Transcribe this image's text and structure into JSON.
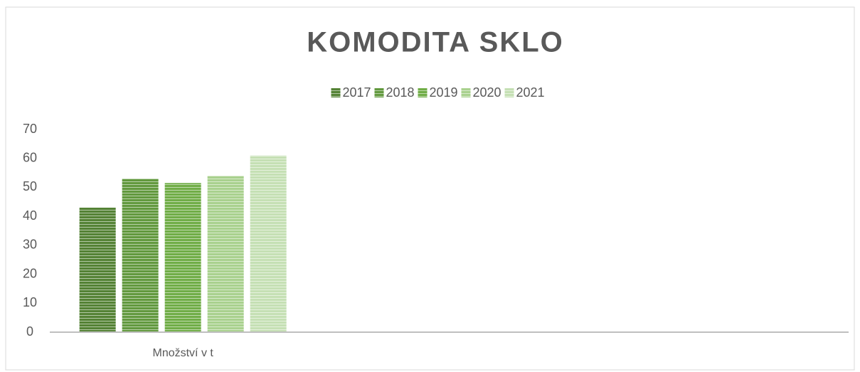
{
  "chart_data": {
    "type": "bar",
    "title": "KOMODITA SKLO",
    "categories": [
      "Množství v t",
      null,
      null
    ],
    "series": [
      {
        "name": "2017",
        "color": "#548235",
        "values": [
          43,
          null,
          null
        ]
      },
      {
        "name": "2018",
        "color": "#62993e",
        "values": [
          53,
          null,
          null
        ]
      },
      {
        "name": "2019",
        "color": "#70ad47",
        "values": [
          51.5,
          null,
          null
        ]
      },
      {
        "name": "2020",
        "color": "#a9d18e",
        "values": [
          54,
          null,
          null
        ]
      },
      {
        "name": "2021",
        "color": "#c5e0b4",
        "values": [
          61,
          null,
          null
        ]
      }
    ],
    "ylim": [
      0,
      70
    ],
    "yticks": [
      0,
      10,
      20,
      30,
      40,
      50,
      60,
      70
    ],
    "grid": false,
    "legend": "top"
  }
}
